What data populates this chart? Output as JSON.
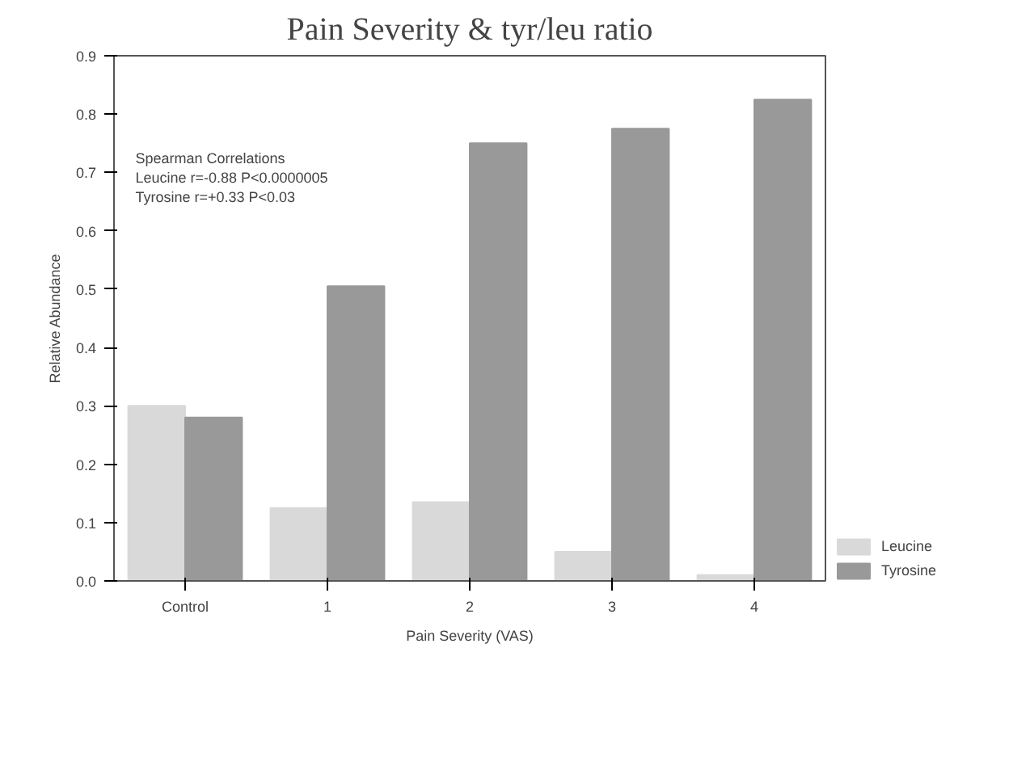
{
  "chart_data": {
    "type": "bar",
    "title": "Pain Severity & tyr/leu ratio",
    "xlabel": "Pain Severity (VAS)",
    "ylabel": "Relative Abundance",
    "categories": [
      "Control",
      "1",
      "2",
      "3",
      "4"
    ],
    "series": [
      {
        "name": "Leucine",
        "color": "#d9d9d9",
        "values": [
          0.3,
          0.125,
          0.135,
          0.05,
          0.01
        ]
      },
      {
        "name": "Tyrosine",
        "color": "#999999",
        "values": [
          0.28,
          0.505,
          0.75,
          0.775,
          0.825
        ]
      }
    ],
    "ylim": [
      0,
      0.9
    ],
    "yticks": [
      {
        "value": 0,
        "label": "0.0"
      },
      0.1,
      0.2,
      0.3,
      0.4,
      0.5,
      0.6,
      0.7,
      0.8,
      0.9
    ],
    "annotations": [
      "Spearman Correlations",
      "Leucine  r=-0.88   P<0.0000005",
      "Tyrosine r=+0.33  P<0.03"
    ],
    "grid": false,
    "legend": "bottom right"
  }
}
